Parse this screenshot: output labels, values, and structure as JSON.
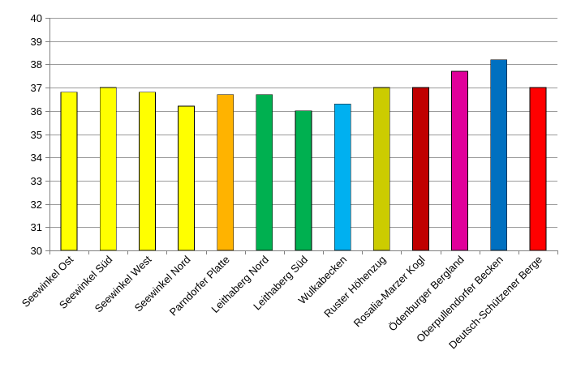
{
  "chart_data": {
    "type": "bar",
    "title": "",
    "xlabel": "",
    "ylabel": "",
    "ylim": [
      30,
      40
    ],
    "yticks": [
      30,
      31,
      32,
      33,
      34,
      35,
      36,
      37,
      38,
      39,
      40
    ],
    "grid": true,
    "legend": "none",
    "categories": [
      "Seewinkel Ost",
      "Seewinkel Süd",
      "Seewinkel West",
      "Seewinkel Nord",
      "Parndorfer Platte",
      "Leithaberg Nord",
      "Leithaberg Süd",
      "Wulkabecken",
      "Ruster Höhenzug",
      "Rosalia-Marzer Kogl",
      "Ödenburger Bergland",
      "Oberpullendorfer Becken",
      "Deutsch-Schützener Berge"
    ],
    "values": [
      36.8,
      37.0,
      36.8,
      36.2,
      36.7,
      36.7,
      36.0,
      36.3,
      37.0,
      37.0,
      37.7,
      38.2,
      37.0
    ],
    "colors": [
      "#FFFF00",
      "#FFFF00",
      "#FFFF00",
      "#FFFF00",
      "#FFB300",
      "#00B050",
      "#00B050",
      "#00B0F0",
      "#CCCC00",
      "#C00000",
      "#E0009A",
      "#0070C0",
      "#FF0000"
    ]
  }
}
